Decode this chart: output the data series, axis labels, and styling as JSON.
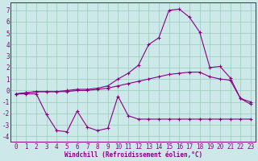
{
  "xlabel": "Windchill (Refroidissement éolien,°C)",
  "x": [
    0,
    1,
    2,
    3,
    4,
    5,
    6,
    7,
    8,
    9,
    10,
    11,
    12,
    13,
    14,
    15,
    16,
    17,
    18,
    19,
    20,
    21,
    22,
    23
  ],
  "line1_zigzag": [
    -0.3,
    -0.3,
    -0.3,
    -2.1,
    -3.5,
    -3.6,
    -1.8,
    -3.2,
    -3.5,
    -3.3,
    -0.5,
    -2.2,
    -2.5,
    -2.5,
    -2.5,
    -2.5,
    -2.5,
    -2.5,
    -2.5,
    -2.5,
    -2.5,
    -2.5,
    -2.5,
    -2.5
  ],
  "line2_upper": [
    -0.3,
    -0.2,
    -0.1,
    -0.1,
    -0.1,
    -0.1,
    -0.0,
    0.0,
    0.1,
    0.2,
    0.4,
    0.6,
    0.8,
    1.0,
    1.2,
    1.4,
    1.5,
    1.6,
    1.6,
    1.2,
    1.0,
    0.9,
    -0.7,
    -1.0
  ],
  "line3_temp": [
    -0.3,
    -0.2,
    -0.1,
    -0.1,
    -0.1,
    -0.0,
    0.1,
    0.1,
    0.2,
    0.4,
    1.0,
    1.5,
    2.2,
    4.0,
    4.6,
    7.0,
    7.1,
    6.4,
    5.1,
    2.0,
    2.1,
    1.1,
    -0.7,
    -1.2
  ],
  "bg_color": "#cce8e8",
  "line_color": "#880088",
  "grid_color": "#99ccbb",
  "ylim": [
    -4.5,
    7.7
  ],
  "yticks": [
    -4,
    -3,
    -2,
    -1,
    0,
    1,
    2,
    3,
    4,
    5,
    6,
    7
  ],
  "xlim": [
    -0.5,
    23.5
  ],
  "tick_fontsize": 5.5,
  "xlabel_fontsize": 5.5
}
